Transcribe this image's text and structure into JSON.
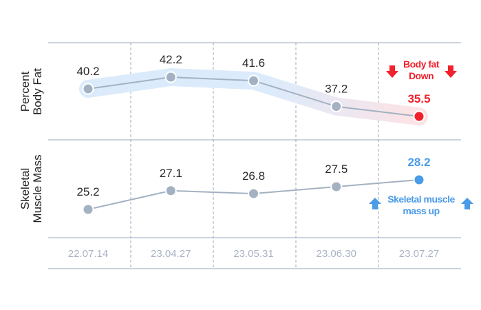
{
  "chart_data": {
    "type": "line",
    "categories": [
      "22.07.14",
      "23.04.27",
      "23.05.31",
      "23.06.30",
      "23.07.27"
    ],
    "series": [
      {
        "name": "Percent Body Fat",
        "color": "#a3b1c2",
        "last_color": "#f0212c",
        "band_colors": [
          "#dcebfb",
          "#fde3e5"
        ],
        "values": [
          40.2,
          42.2,
          41.6,
          37.2,
          35.5
        ],
        "annotation": "Body fat Down"
      },
      {
        "name": "Skeletal Muscle Mass",
        "color": "#a3b1c2",
        "last_color": "#4a9be8",
        "values": [
          25.2,
          27.1,
          26.8,
          27.5,
          28.2
        ],
        "annotation": "Skeletal muscle mass up"
      }
    ]
  }
}
